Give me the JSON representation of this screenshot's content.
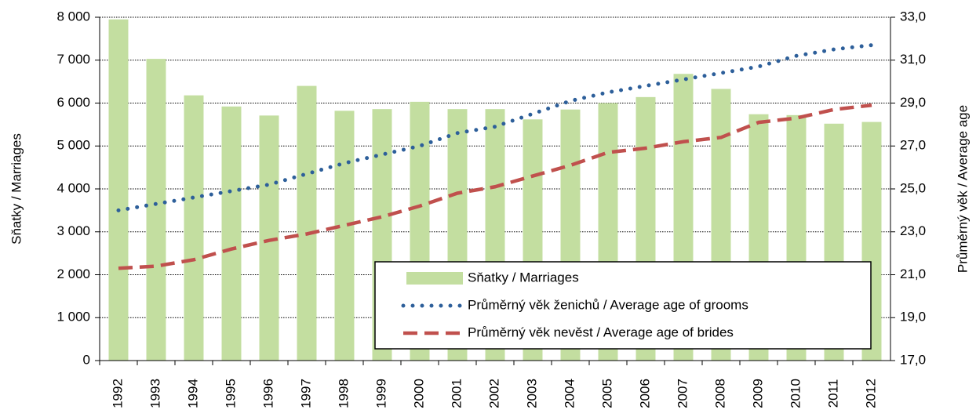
{
  "chart_data": {
    "type": "bar",
    "categories": [
      "1992",
      "1993",
      "1994",
      "1995",
      "1996",
      "1997",
      "1998",
      "1999",
      "2000",
      "2001",
      "2002",
      "2003",
      "2004",
      "2005",
      "2006",
      "2007",
      "2008",
      "2009",
      "2010",
      "2011",
      "2012"
    ],
    "series": [
      {
        "name": "Sňatky / Marriages",
        "type": "bar",
        "axis": "y",
        "color": "#c3dea0",
        "values": [
          7950,
          7030,
          6180,
          5920,
          5710,
          6400,
          5820,
          5860,
          6030,
          5860,
          5860,
          5620,
          5850,
          6000,
          6140,
          6680,
          6330,
          5740,
          5720,
          5520,
          5560
        ]
      },
      {
        "name": "Průměrný věk ženichů / Average age of grooms",
        "type": "line",
        "axis": "y2",
        "color": "#2d5f9a",
        "values": [
          24.0,
          24.3,
          24.6,
          24.9,
          25.2,
          25.7,
          26.2,
          26.6,
          27.0,
          27.6,
          27.9,
          28.5,
          29.1,
          29.5,
          29.8,
          30.1,
          30.4,
          30.7,
          31.2,
          31.5,
          31.7
        ]
      },
      {
        "name": "Průměrný věk nevěst / Average age of brides",
        "type": "line",
        "axis": "y2",
        "color": "#c0504d",
        "values": [
          21.3,
          21.4,
          21.7,
          22.2,
          22.6,
          22.9,
          23.3,
          23.7,
          24.2,
          24.8,
          25.1,
          25.6,
          26.1,
          26.7,
          26.9,
          27.2,
          27.4,
          28.1,
          28.3,
          28.7,
          28.9
        ]
      }
    ],
    "ylabel": "Sňatky / Marriages",
    "y2label": "Průměrný věk / Average age",
    "ylim": [
      0,
      8000
    ],
    "yticks": [
      0,
      {
        "value": 1000,
        "label": "1 000"
      },
      {
        "value": 2000,
        "label": "2 000"
      },
      {
        "value": 3000,
        "label": "3 000"
      },
      {
        "value": 4000,
        "label": "4 000"
      },
      {
        "value": 5000,
        "label": "5 000"
      },
      {
        "value": 6000,
        "label": "6 000"
      },
      {
        "value": 7000,
        "label": "7 000"
      },
      {
        "value": 8000,
        "label": "8 000"
      }
    ],
    "y2lim": [
      17,
      33
    ],
    "y2ticks": [
      {
        "value": 17,
        "label": "17,0"
      },
      {
        "value": 19,
        "label": "19,0"
      },
      {
        "value": 21,
        "label": "21,0"
      },
      {
        "value": 23,
        "label": "23,0"
      },
      {
        "value": 25,
        "label": "25,0"
      },
      {
        "value": 27,
        "label": "27,0"
      },
      {
        "value": 29,
        "label": "29,0"
      },
      {
        "value": 31,
        "label": "31,0"
      },
      {
        "value": 33,
        "label": "33,0"
      }
    ],
    "grid": true,
    "legend": "lower right"
  }
}
